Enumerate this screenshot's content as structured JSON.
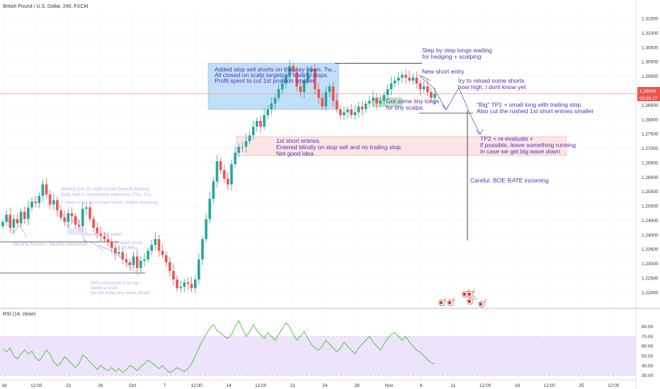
{
  "title": "British Pound / U.S. Dollar, 240, FXCM",
  "rsi_title": "RSI (14, close)",
  "price_labels": {
    "last": "1.28890",
    "countdown": "03:26:17"
  },
  "colors": {
    "up": "#26a69a",
    "down": "#ef5350",
    "annotation": "#4b35b5",
    "hline": "#ef9a9a",
    "rsi": "#43c22f",
    "rsi_band": "#ede3fb",
    "box_blue": "#aed4f7",
    "box_red": "#fde1e1"
  },
  "annotations": {
    "a1": [
      "Added stop sell shorts on the way down. Tw...",
      "All closed on scalp targets or trailing stops.",
      "Profit spent to cut 1st position smaller"
    ],
    "a2": [
      "Step by step longs waiting",
      "for hedging + scalping"
    ],
    "a3": [
      "New short entry"
    ],
    "a4": [
      "try to reload some shorts",
      "how high, i dont know yet"
    ],
    "a5": [
      "Got some tiny longs",
      "for tiny scalps."
    ],
    "a6": [
      "\"Big\" TP1 + small long with trailing stop",
      "Also cut the rushed 1st short entries smaller"
    ],
    "a7": [
      "1st short entries.",
      "Entered blindly on stop sell and no trailing stop.",
      "Not good idea"
    ],
    "a8": [
      "TP2 + re-evaluate +",
      "if possible, leave something running",
      "in case we get big wave down"
    ],
    "a9": [
      "Careful. BOE RATE incoming"
    ]
  },
  "faded_notes": {
    "f1": [
      "Weekly (16-22 sept) closed bearish looking",
      "Daily had 2 consecutive rejections (Thu, Fri)"
    ],
    "f2": [
      "1 more move up to load shorts, before dumping"
    ],
    "f3": [
      "ore drop for cable"
    ],
    "f4": [
      "ejecting Bounce / liquidity uncovered ..."
    ],
    "f5": [
      "Bearish cross",
      "on 4h MAs"
    ],
    "f6": [
      "50% correction from up...",
      "below a level.",
      "Do not enter any more shorts"
    ]
  },
  "events": [
    {
      "x": "Nov 5",
      "count": "5"
    },
    {
      "x": "Nov 5",
      "count": "5"
    },
    {
      "x": "Nov 6",
      "count": "6"
    },
    {
      "x": "Nov 7",
      "count": "21"
    },
    {
      "x": "Nov 7",
      "count": "6"
    },
    {
      "x": "Nov 9",
      "count": "2"
    }
  ],
  "chart_data": [
    {
      "type": "candlestick",
      "title": "British Pound / U.S. Dollar, 240, FXCM",
      "ylim": [
        1.215,
        1.318
      ],
      "yticks": [
        "1.22000",
        "1.22500",
        "1.23000",
        "1.23500",
        "1.24000",
        "1.24500",
        "1.25000",
        "1.25500",
        "1.26000",
        "1.26500",
        "1.27000",
        "1.27500",
        "1.28000",
        "1.28500",
        "1.29000",
        "1.29500",
        "1.30000",
        "1.30500",
        "1.31000",
        "1.31500"
      ],
      "xticks": [
        "16",
        "12:00",
        "23",
        "26",
        "Oct",
        "7",
        "12:00",
        "14",
        "12:00",
        "21",
        "24",
        "28",
        "Nov",
        "6",
        "11",
        "12:00",
        "18",
        "12:00",
        "25",
        "12:00"
      ],
      "series_close": [
        1.2445,
        1.247,
        1.2425,
        1.2455,
        1.244,
        1.248,
        1.2455,
        1.2495,
        1.2515,
        1.251,
        1.2535,
        1.2575,
        1.254,
        1.2505,
        1.252,
        1.2485,
        1.246,
        1.2445,
        1.2475,
        1.2465,
        1.2435,
        1.243,
        1.249,
        1.2495,
        1.2455,
        1.2425,
        1.2405,
        1.2395,
        1.2385,
        1.2375,
        1.2355,
        1.2335,
        1.234,
        1.2315,
        1.2305,
        1.2295,
        1.2325,
        1.2285,
        1.231,
        1.2315,
        1.2345,
        1.2365,
        1.2385,
        1.2345,
        1.233,
        1.2305,
        1.2275,
        1.2245,
        1.2215,
        1.222,
        1.2235,
        1.223,
        1.2215,
        1.2245,
        1.2315,
        1.2385,
        1.2455,
        1.2525,
        1.2585,
        1.2655,
        1.2625,
        1.2595,
        1.2575,
        1.2645,
        1.2685,
        1.2705,
        1.2705,
        1.2725,
        1.2745,
        1.2775,
        1.2795,
        1.2775,
        1.2815,
        1.2835,
        1.2855,
        1.2875,
        1.2905,
        1.2925,
        1.2955,
        1.2985,
        1.2965,
        1.2915,
        1.2895,
        1.2935,
        1.2965,
        1.2975,
        1.2905,
        1.2875,
        1.2845,
        1.2895,
        1.2915,
        1.2865,
        1.2835,
        1.2815,
        1.2825,
        1.2835,
        1.2815,
        1.2825,
        1.2845,
        1.2835,
        1.2855,
        1.2865,
        1.2875,
        1.2855,
        1.2865,
        1.2885,
        1.2905,
        1.2925,
        1.2935,
        1.2945,
        1.2955,
        1.2945,
        1.2935,
        1.2945,
        1.2925,
        1.2905,
        1.2915,
        1.2895,
        1.2875,
        1.2889
      ],
      "last_price": 1.2889,
      "lines": [
        {
          "name": "resistance",
          "y": 1.2995
        },
        {
          "name": "tp1",
          "y": 1.2822
        },
        {
          "name": "entry",
          "y": 1.2889
        }
      ],
      "zones": [
        {
          "name": "blue-box",
          "y_top": 1.2995,
          "y_bottom": 1.2835
        },
        {
          "name": "red-box",
          "y_top": 1.274,
          "y_bottom": 1.2675
        },
        {
          "name": "green-box",
          "y_top": 1.2875,
          "y_bottom": 1.2845
        }
      ]
    },
    {
      "type": "line",
      "title": "RSI (14, close)",
      "ylim": [
        27,
        90
      ],
      "yticks": [
        "30.00",
        "40.00",
        "50.00",
        "60.00",
        "70.00",
        "80.00"
      ],
      "band": [
        30,
        70
      ],
      "values": [
        57,
        54,
        58,
        50,
        47,
        52,
        56,
        52,
        55,
        48,
        45,
        50,
        56,
        52,
        44,
        40,
        43,
        49,
        46,
        42,
        38,
        42,
        51,
        48,
        44,
        40,
        36,
        40,
        37,
        35,
        38,
        34,
        37,
        33,
        36,
        40,
        38,
        35,
        39,
        42,
        46,
        43,
        40,
        37,
        40,
        36,
        33,
        35,
        38,
        36,
        34,
        37,
        42,
        50,
        58,
        66,
        72,
        78,
        82,
        76,
        74,
        70,
        68,
        72,
        80,
        86,
        78,
        70,
        75,
        82,
        76,
        72,
        68,
        74,
        70,
        66,
        72,
        78,
        84,
        80,
        72,
        66,
        70,
        75,
        68,
        62,
        58,
        56,
        60,
        66,
        62,
        58,
        54,
        58,
        64,
        60,
        56,
        52,
        58,
        62,
        66,
        70,
        64,
        60,
        56,
        62,
        68,
        72,
        74,
        70,
        66,
        70,
        64,
        60,
        56,
        54,
        50,
        46,
        43,
        42
      ]
    }
  ]
}
